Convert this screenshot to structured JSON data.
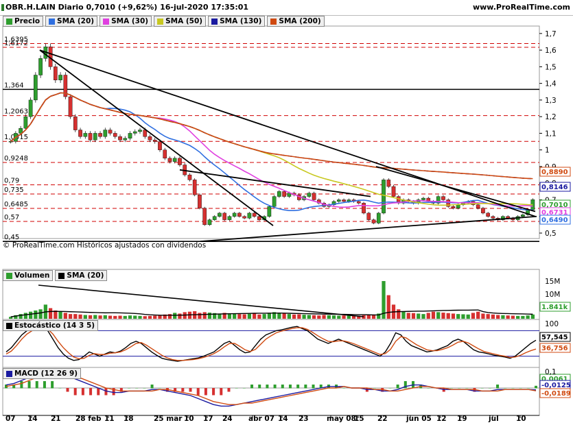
{
  "header": {
    "title": "OBR.H.LAIN Diario 0,7010 (+9,62%) 16-jul-2020 17:35:01",
    "site": "www.ProRealTime.com"
  },
  "colors": {
    "candle_up": "#2e9e2e",
    "candle_down": "#d63030",
    "sma20": "#2f6fe0",
    "sma30": "#e040e0",
    "sma50": "#c8c820",
    "sma130": "#1a1aa0",
    "sma200": "#d04a10",
    "level": "#d00000"
  },
  "price_legend": [
    {
      "key": "price",
      "label": "Precio",
      "color": "#2e9e2e"
    },
    {
      "key": "sma20",
      "label": "SMA (20)",
      "color": "#2f6fe0"
    },
    {
      "key": "sma30",
      "label": "SMA (30)",
      "color": "#e040e0"
    },
    {
      "key": "sma50",
      "label": "SMA (50)",
      "color": "#c8c820"
    },
    {
      "key": "sma130",
      "label": "SMA (130)",
      "color": "#1a1aa0"
    },
    {
      "key": "sma200",
      "label": "SMA (200)",
      "color": "#d04a10"
    }
  ],
  "level_labels": [
    "1,6395",
    "1,6172",
    "1,364",
    "1,20635",
    "1,0515",
    "0,9248",
    "0,79",
    "0,735",
    "0,6485",
    "0,57",
    "0,45"
  ],
  "attribution": "© ProRealTime.com Históricos ajustados con dividendos",
  "volume_legend": [
    "Volumen",
    "SMA (20)"
  ],
  "stoch_legend": "Estocástico (14 3 5)",
  "macd_legend": "MACD (12 26 9)",
  "value_boxes": [
    {
      "text": "0,8890",
      "color": "#d04a10"
    },
    {
      "text": "0,8146",
      "color": "#1a1aa0"
    },
    {
      "text": "0,7010",
      "color": "#2e9e2e"
    },
    {
      "text": "0,6731",
      "color": "#e040e0"
    },
    {
      "text": "0,6490",
      "color": "#2f6fe0"
    },
    {
      "text": "1.841k",
      "color": "#2e9e2e"
    },
    {
      "text": "57,545",
      "color": "#000000"
    },
    {
      "text": "36,756",
      "color": "#d04a10"
    },
    {
      "text": "0,0061",
      "color": "#2e9e2e"
    },
    {
      "text": "-0,0125",
      "color": "#1a1aa0"
    },
    {
      "text": "-0,0189",
      "color": "#d04a10"
    }
  ],
  "chart_data": [
    {
      "type": "candlestick",
      "title": "OBR.H.LAIN Diario",
      "ylim": [
        0.45,
        1.7
      ],
      "yticks": [
        1.7,
        1.6,
        1.5,
        1.4,
        1.3,
        1.2,
        1.1,
        1,
        0.9,
        0.8,
        0.7,
        0.6,
        0.5
      ],
      "ytick_labels": [
        "1,7",
        "1,6",
        "1,5",
        "1,4",
        "1,3",
        "1,2",
        "1,1",
        "1",
        "0,9",
        "0,8",
        "0,7",
        "0,6",
        "0,5"
      ],
      "xtick_labels": [
        "07",
        "14",
        "21",
        "28 feb",
        "11",
        "18",
        "25 mar",
        "10",
        "17",
        "24",
        "abr 07",
        "14",
        "23",
        "may 08",
        "15",
        "22",
        "jun 05",
        "12",
        "19",
        "jul",
        "10"
      ],
      "close": [
        1.0515,
        1.1,
        1.13,
        1.2,
        1.3,
        1.45,
        1.55,
        1.62,
        1.5,
        1.42,
        1.45,
        1.32,
        1.2,
        1.12,
        1.08,
        1.1,
        1.06,
        1.1,
        1.08,
        1.12,
        1.1,
        1.08,
        1.06,
        1.07,
        1.1,
        1.11,
        1.12,
        1.08,
        1.06,
        1.05,
        1.0,
        0.95,
        0.93,
        0.95,
        0.91,
        0.85,
        0.82,
        0.73,
        0.65,
        0.55,
        0.58,
        0.6,
        0.62,
        0.58,
        0.6,
        0.62,
        0.6,
        0.59,
        0.62,
        0.6,
        0.58,
        0.6,
        0.66,
        0.72,
        0.75,
        0.72,
        0.74,
        0.73,
        0.7,
        0.72,
        0.74,
        0.7,
        0.68,
        0.66,
        0.67,
        0.69,
        0.7,
        0.69,
        0.7,
        0.69,
        0.68,
        0.62,
        0.58,
        0.56,
        0.62,
        0.82,
        0.78,
        0.72,
        0.68,
        0.7,
        0.69,
        0.68,
        0.7,
        0.71,
        0.69,
        0.68,
        0.72,
        0.7,
        0.66,
        0.65,
        0.67,
        0.68,
        0.69,
        0.67,
        0.65,
        0.62,
        0.6,
        0.59,
        0.58,
        0.6,
        0.59,
        0.58,
        0.6,
        0.61,
        0.64,
        0.701
      ],
      "volume_sma_label": "SMA (20)",
      "levels": [
        1.6395,
        1.6172,
        1.364,
        1.20635,
        1.0515,
        0.9248,
        0.79,
        0.735,
        0.6485,
        0.57,
        0.45
      ]
    },
    {
      "type": "bar",
      "title": "Volumen",
      "yticks_labels": [
        "15M",
        "10M"
      ],
      "values": [
        0.8,
        1.5,
        2,
        2.5,
        3,
        3.5,
        4,
        6,
        4.5,
        3.5,
        3,
        2.5,
        2,
        2,
        1.8,
        1.6,
        1.5,
        1.6,
        1.4,
        1.5,
        1.3,
        1.2,
        1.3,
        1.2,
        1.4,
        1.3,
        1.2,
        1.1,
        1.2,
        1.3,
        1.5,
        1.8,
        2,
        2.5,
        2.2,
        2.8,
        3,
        3.2,
        2.5,
        2.8,
        2.6,
        2.4,
        2.2,
        2.5,
        2.3,
        2.1,
        2,
        1.9,
        2.1,
        2.2,
        1.8,
        2,
        2.5,
        2.8,
        2.4,
        2.2,
        2,
        1.8,
        1.9,
        1.7,
        1.6,
        1.5,
        1.4,
        1.6,
        1.5,
        1.4,
        1.3,
        1.4,
        1.3,
        1.2,
        1.3,
        1.5,
        1.6,
        1.8,
        2.2,
        16,
        10,
        6,
        4,
        3,
        2.5,
        2.4,
        2.2,
        2,
        2.5,
        3,
        2.8,
        2.6,
        2.4,
        2.2,
        2,
        1.9,
        1.8,
        2.5,
        3,
        2.2,
        2,
        1.8,
        1.6,
        1.5,
        1.4,
        1.3,
        1.2,
        1.2,
        1.4,
        1.8
      ]
    },
    {
      "type": "line",
      "title": "Estocástico (14 3 5)",
      "ylim": [
        0,
        100
      ],
      "yticks_labels": [
        "100"
      ],
      "series": [
        {
          "name": "%K",
          "values": [
            30,
            40,
            55,
            70,
            80,
            85,
            88,
            90,
            80,
            60,
            40,
            25,
            15,
            10,
            12,
            20,
            30,
            25,
            20,
            25,
            30,
            28,
            32,
            40,
            50,
            55,
            50,
            40,
            30,
            22,
            15,
            12,
            10,
            8,
            10,
            12,
            14,
            16,
            20,
            25,
            30,
            40,
            50,
            55,
            45,
            35,
            28,
            30,
            45,
            60,
            70,
            75,
            80,
            82,
            85,
            88,
            90,
            85,
            80,
            70,
            60,
            55,
            50,
            55,
            60,
            55,
            50,
            45,
            40,
            35,
            30,
            25,
            20,
            30,
            50,
            75,
            70,
            55,
            45,
            40,
            35,
            30,
            32,
            35,
            40,
            45,
            55,
            60,
            55,
            45,
            35,
            30,
            28,
            25,
            22,
            20,
            18,
            15,
            20,
            30,
            40,
            50,
            57.545
          ]
        },
        {
          "name": "%D",
          "values": [
            25,
            32,
            45,
            60,
            72,
            80,
            85,
            87,
            84,
            72,
            55,
            40,
            28,
            18,
            14,
            15,
            22,
            26,
            24,
            24,
            27,
            28,
            30,
            35,
            42,
            50,
            52,
            46,
            38,
            30,
            22,
            16,
            12,
            10,
            10,
            11,
            12,
            14,
            17,
            21,
            26,
            33,
            42,
            50,
            50,
            43,
            35,
            31,
            36,
            48,
            60,
            68,
            75,
            79,
            82,
            85,
            87,
            87,
            83,
            76,
            68,
            61,
            55,
            54,
            56,
            56,
            53,
            49,
            44,
            39,
            34,
            29,
            24,
            26,
            36,
            55,
            66,
            63,
            55,
            47,
            41,
            35,
            33,
            33,
            36,
            40,
            46,
            53,
            55,
            51,
            44,
            37,
            31,
            28,
            25,
            22,
            20,
            17,
            18,
            22,
            28,
            33,
            36.756
          ]
        }
      ]
    },
    {
      "type": "line",
      "title": "MACD (12 26 9)",
      "yticks_labels": [
        "0,1"
      ],
      "series": [
        {
          "name": "MACD",
          "values": [
            0.02,
            0.03,
            0.05,
            0.07,
            0.09,
            0.1,
            0.11,
            0.1,
            0.08,
            0.06,
            0.04,
            0.02,
            0,
            -0.02,
            -0.03,
            -0.03,
            -0.02,
            -0.02,
            -0.02,
            -0.01,
            -0.01,
            -0.02,
            -0.03,
            -0.04,
            -0.05,
            -0.07,
            -0.09,
            -0.11,
            -0.12,
            -0.12,
            -0.11,
            -0.1,
            -0.09,
            -0.08,
            -0.07,
            -0.06,
            -0.05,
            -0.04,
            -0.03,
            -0.02,
            -0.01,
            0,
            0.01,
            0.01,
            0.01,
            0,
            0,
            -0.01,
            -0.01,
            -0.02,
            -0.02,
            -0.01,
            0.01,
            0.02,
            0.02,
            0.01,
            0,
            -0.01,
            -0.01,
            -0.01,
            -0.01,
            -0.02,
            -0.02,
            -0.02,
            -0.01,
            -0.01,
            -0.01,
            -0.01,
            -0.01,
            -0.0125
          ]
        },
        {
          "name": "Signal",
          "values": [
            0.01,
            0.02,
            0.03,
            0.05,
            0.07,
            0.08,
            0.09,
            0.1,
            0.09,
            0.08,
            0.06,
            0.04,
            0.02,
            0,
            -0.01,
            -0.02,
            -0.02,
            -0.02,
            -0.02,
            -0.02,
            -0.01,
            -0.01,
            -0.02,
            -0.03,
            -0.04,
            -0.05,
            -0.07,
            -0.09,
            -0.1,
            -0.11,
            -0.11,
            -0.1,
            -0.1,
            -0.09,
            -0.08,
            -0.07,
            -0.06,
            -0.05,
            -0.04,
            -0.03,
            -0.02,
            -0.01,
            0,
            0,
            0.01,
            0,
            0,
            0,
            -0.01,
            -0.01,
            -0.02,
            -0.02,
            -0.01,
            0,
            0.01,
            0.01,
            0,
            0,
            -0.01,
            -0.01,
            -0.01,
            -0.01,
            -0.02,
            -0.02,
            -0.02,
            -0.01,
            -0.01,
            -0.01,
            -0.01,
            -0.0189
          ]
        }
      ]
    }
  ]
}
